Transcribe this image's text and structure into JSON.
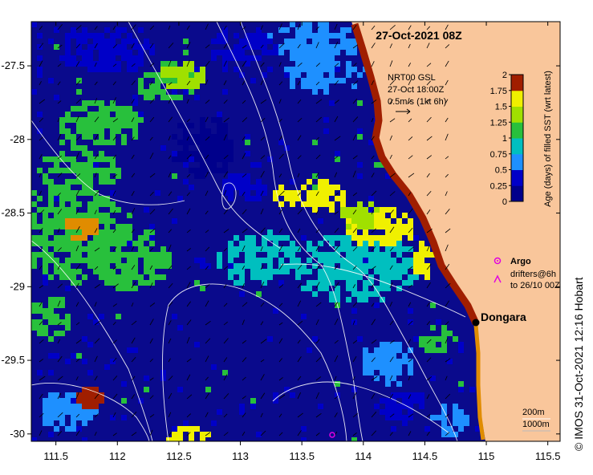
{
  "map": {
    "title": "27-Oct-2021 08Z",
    "lon_ticks": [
      "111.5",
      "112",
      "112.5",
      "113",
      "113.5",
      "114",
      "114.5",
      "115",
      "115.5"
    ],
    "lat_ticks": [
      "-27.5",
      "-28",
      "-28.5",
      "-29",
      "-29.5",
      "-30"
    ],
    "lon_range": [
      111.3,
      115.6
    ],
    "lat_range": [
      -30.05,
      -27.2
    ],
    "place_label": "Dongara",
    "colors": {
      "land": "#f9c69b",
      "age_0": "#00008b",
      "age_0_25": "#0000c8",
      "age_0_5": "#1e90ff",
      "age_0_75": "#00bfbf",
      "age_1": "#28c03c",
      "age_1_25": "#a0e000",
      "age_1_5": "#f0f000",
      "age_1_75": "#e08c00",
      "age_2": "#a01e00"
    }
  },
  "wind_legend": {
    "line1": "NRT00 GSL",
    "line2": "27-Oct 18:00Z",
    "line3": "0.5m/s (1kt 6h)"
  },
  "colorbar": {
    "label": "Age (days) of filled SST (wrt latest)",
    "ticks": [
      "0",
      "0.25",
      "0.5",
      "0.75",
      "1",
      "1.25",
      "1.5",
      "1.75",
      "2"
    ]
  },
  "argo_legend": {
    "label": "Argo",
    "drifters_line1": "drifters@6h",
    "drifters_line2": "to 26/10 00Z"
  },
  "depth_legend": {
    "line1": "200m",
    "line2": "1000m"
  },
  "credit": "© IMOS 31-Oct-2021 12:16 Hobart"
}
